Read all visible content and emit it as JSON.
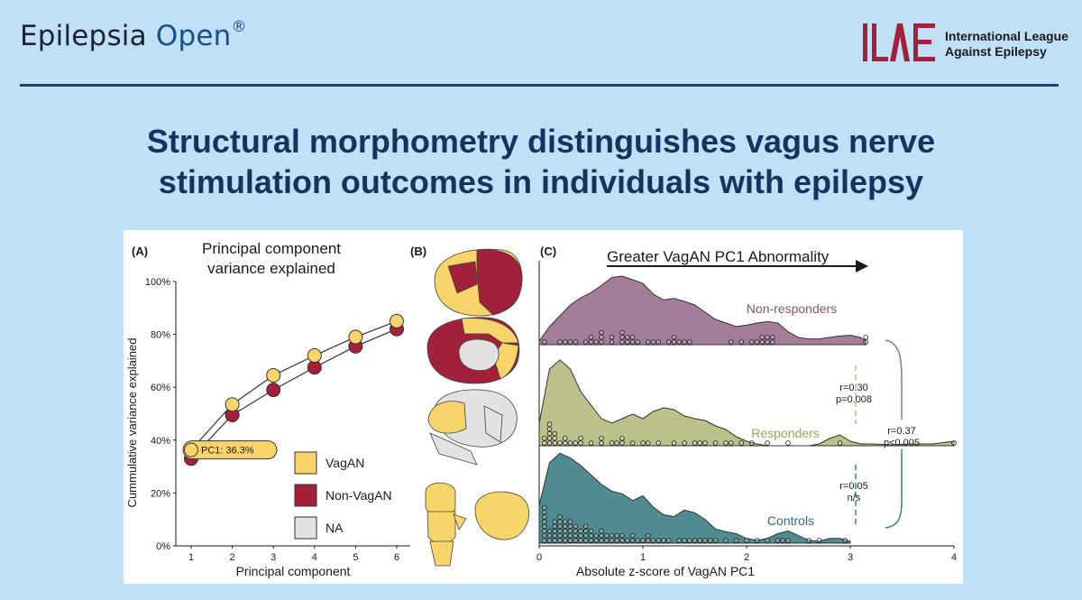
{
  "header": {
    "journal_name": "Epilepsia",
    "journal_suffix": "Open",
    "registered_mark": "®",
    "org_line1": "International League",
    "org_line2": "Against Epilepsy"
  },
  "title_line1": "Structural morphometry distinguishes vagus nerve",
  "title_line2": "stimulation outcomes in individuals with epilepsy",
  "colors": {
    "vagan": "#f7d56b",
    "non_vagan": "#a3203a",
    "na": "#e2e2e2",
    "non_responders": "#9a6f8f",
    "responders": "#b5ba7d",
    "controls": "#3d7f83",
    "navy": "#16325f"
  },
  "panel_a": {
    "label": "(A)",
    "title_line1": "Principal component",
    "title_line2": "variance explained",
    "annotation": "PC1: 36.3%",
    "legend": [
      "VagAN",
      "Non-VagAN",
      "NA"
    ]
  },
  "panel_b": {
    "label": "(B)"
  },
  "panel_c": {
    "label": "(C)",
    "arrow_label": "Greater VagAN PC1 Abnormality",
    "group_labels": [
      "Non-responders",
      "Responders",
      "Controls"
    ],
    "stat_nr_r": "r=0.30",
    "stat_nr_p": "p=0.008",
    "stat_nr_c_r": "r=0.37",
    "stat_nr_c_p": "p<0.005",
    "stat_r_c_r": "r=0.05",
    "stat_r_c_p": "n/s"
  },
  "chart_data": [
    {
      "type": "line",
      "title": "Principal component variance explained",
      "xlabel": "Principal component",
      "ylabel": "Cummulative variance explained",
      "x": [
        1,
        2,
        3,
        4,
        5,
        6
      ],
      "xticks": [
        "1",
        "2",
        "3",
        "4",
        "5",
        "6"
      ],
      "yticks": [
        "0%",
        "20%",
        "40%",
        "60%",
        "80%",
        "100%"
      ],
      "ylim": [
        0,
        100
      ],
      "series": [
        {
          "name": "VagAN",
          "values": [
            36.3,
            53.5,
            64.5,
            72,
            79,
            85
          ]
        },
        {
          "name": "Non-VagAN",
          "values": [
            33,
            49.5,
            59,
            67.5,
            75.5,
            82
          ]
        }
      ],
      "grid": false,
      "legend": "bottom-right"
    },
    {
      "type": "area",
      "title": "",
      "xlabel": "Absolute z-score of VagAN PC1",
      "xticks": [
        "0",
        "1",
        "2",
        "3",
        "4"
      ],
      "xlim": [
        0,
        4
      ],
      "series": [
        {
          "name": "Non-responders",
          "x": [
            0,
            0.1,
            0.2,
            0.3,
            0.4,
            0.5,
            0.6,
            0.7,
            0.8,
            0.9,
            1.0,
            1.1,
            1.2,
            1.3,
            1.4,
            1.5,
            1.6,
            1.7,
            1.8,
            1.9,
            2.0,
            2.1,
            2.2,
            2.3,
            2.4,
            2.5,
            2.6,
            2.7,
            2.8,
            2.9,
            3.0,
            3.1,
            3.15
          ],
          "density": [
            0.05,
            0.25,
            0.4,
            0.55,
            0.65,
            0.72,
            0.82,
            0.93,
            0.95,
            0.9,
            0.85,
            0.7,
            0.62,
            0.64,
            0.6,
            0.55,
            0.45,
            0.35,
            0.3,
            0.25,
            0.27,
            0.3,
            0.32,
            0.3,
            0.18,
            0.1,
            0.08,
            0.08,
            0.1,
            0.12,
            0.13,
            0.1,
            0.05
          ],
          "points": [
            0.05,
            0.18,
            0.27,
            0.3,
            0.35,
            0.43,
            0.5,
            0.5,
            0.57,
            0.62,
            0.62,
            0.62,
            0.72,
            0.72,
            0.8,
            0.8,
            0.8,
            0.85,
            0.85,
            0.9,
            0.9,
            0.95,
            1.05,
            1.1,
            1.15,
            1.25,
            1.3,
            1.3,
            1.35,
            1.4,
            1.45,
            1.85,
            1.95,
            2.05,
            2.1,
            2.15,
            2.15,
            2.2,
            2.2,
            2.25,
            2.25,
            3.15,
            3.15
          ]
        },
        {
          "name": "Responders",
          "x": [
            0,
            0.1,
            0.2,
            0.3,
            0.4,
            0.5,
            0.6,
            0.7,
            0.8,
            0.9,
            1.0,
            1.1,
            1.2,
            1.3,
            1.4,
            1.5,
            1.6,
            1.7,
            1.8,
            1.9,
            2.0,
            2.1,
            2.2,
            2.3,
            2.4,
            2.5,
            2.6,
            2.7,
            2.8,
            2.9,
            3.0,
            3.1,
            3.2,
            3.4,
            3.6,
            3.8,
            4.0
          ],
          "density": [
            0.25,
            0.85,
            0.95,
            0.85,
            0.6,
            0.45,
            0.3,
            0.25,
            0.3,
            0.35,
            0.3,
            0.38,
            0.42,
            0.4,
            0.33,
            0.3,
            0.28,
            0.22,
            0.18,
            0.1,
            0.05,
            0.02,
            0,
            0,
            0,
            0,
            0,
            0.02,
            0.08,
            0.12,
            0.05,
            0.02,
            0.02,
            0.01,
            0.02,
            0.02,
            0.05
          ],
          "points": [
            0.05,
            0.05,
            0.08,
            0.08,
            0.08,
            0.12,
            0.12,
            0.15,
            0.15,
            0.15,
            0.2,
            0.25,
            0.25,
            0.3,
            0.35,
            0.42,
            0.42,
            0.5,
            0.58,
            0.62,
            0.7,
            0.75,
            0.82,
            0.82,
            0.9,
            1.0,
            1.05,
            1.15,
            1.3,
            1.4,
            1.48,
            1.55,
            1.62,
            1.7,
            1.8,
            1.83,
            1.95,
            2.05,
            2.2,
            2.4,
            2.92,
            4.0
          ]
        },
        {
          "name": "Controls",
          "x": [
            0,
            0.1,
            0.2,
            0.3,
            0.4,
            0.5,
            0.6,
            0.7,
            0.8,
            0.9,
            1.0,
            1.1,
            1.2,
            1.3,
            1.4,
            1.5,
            1.6,
            1.7,
            1.8,
            1.9,
            2.0,
            2.1,
            2.2,
            2.3,
            2.4,
            2.5,
            2.6,
            2.7,
            2.8,
            2.9,
            3.0
          ],
          "density": [
            0.4,
            0.85,
            0.95,
            0.9,
            0.82,
            0.72,
            0.62,
            0.55,
            0.52,
            0.45,
            0.5,
            0.38,
            0.3,
            0.28,
            0.35,
            0.32,
            0.25,
            0.15,
            0.12,
            0.1,
            0.05,
            0.03,
            0.05,
            0.1,
            0.13,
            0.08,
            0.03,
            0.02,
            0.05,
            0.05,
            0.02
          ],
          "points": [
            0.03,
            0.03,
            0.03,
            0.03,
            0.05,
            0.05,
            0.05,
            0.05,
            0.1,
            0.1,
            0.1,
            0.15,
            0.15,
            0.15,
            0.15,
            0.15,
            0.2,
            0.2,
            0.2,
            0.2,
            0.2,
            0.2,
            0.25,
            0.25,
            0.25,
            0.25,
            0.25,
            0.3,
            0.3,
            0.3,
            0.3,
            0.3,
            0.35,
            0.35,
            0.35,
            0.35,
            0.4,
            0.4,
            0.4,
            0.45,
            0.45,
            0.45,
            0.45,
            0.5,
            0.5,
            0.5,
            0.55,
            0.55,
            0.6,
            0.6,
            0.6,
            0.65,
            0.65,
            0.7,
            0.7,
            0.75,
            0.75,
            0.8,
            0.8,
            0.85,
            0.9,
            0.9,
            0.95,
            1.0,
            1.05,
            1.05,
            1.1,
            1.15,
            1.2,
            1.25,
            1.35,
            1.4,
            1.45,
            1.5,
            1.55,
            1.6,
            1.65,
            1.7,
            1.8,
            1.9,
            2.0,
            2.1,
            2.2,
            2.3,
            2.35,
            2.4,
            2.6,
            2.7,
            2.95
          ]
        }
      ],
      "grid": false
    }
  ]
}
